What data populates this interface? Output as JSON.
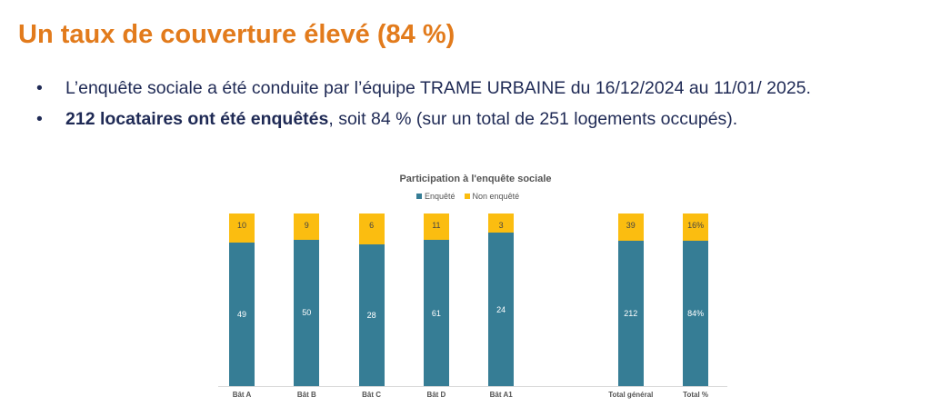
{
  "title": "Un taux de couverture élevé (84 %)",
  "bullets": [
    {
      "bold": "",
      "text": "L’enquête sociale a été conduite par l’équipe TRAME URBAINE du 16/12/2024 au 11/01/ 2025."
    },
    {
      "bold": "212 locataires ont été enquêtés",
      "text": ", soit 84 % (sur un total de 251 logements occupés)."
    }
  ],
  "bullet_symbol": "•",
  "chart_data": {
    "type": "bar",
    "stacked": "100%",
    "title": "Participation à l'enquête sociale",
    "legend_position": "top",
    "categories": [
      "Bât A",
      "Bât B",
      "Bât C",
      "Bât D",
      "Bât A1",
      "Total général",
      "Total %"
    ],
    "series": [
      {
        "name": "Enquêté",
        "color": "#367d95",
        "values": [
          49,
          50,
          28,
          61,
          24,
          212,
          84
        ],
        "labels": [
          "49",
          "50",
          "28",
          "61",
          "24",
          "212",
          "84%"
        ]
      },
      {
        "name": "Non enquêté",
        "color": "#fbbd10",
        "values": [
          10,
          9,
          6,
          11,
          3,
          39,
          16
        ],
        "labels": [
          "10",
          "9",
          "6",
          "11",
          "3",
          "39",
          "16%"
        ]
      }
    ],
    "xlabel": "",
    "ylabel": "",
    "grid": false
  }
}
